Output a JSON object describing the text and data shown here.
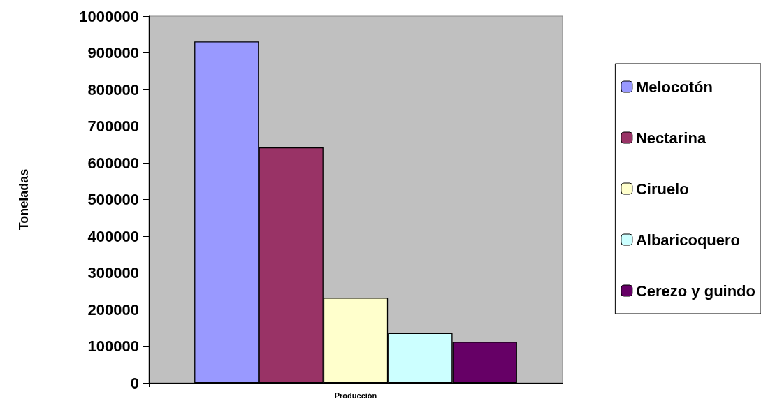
{
  "chart_data": {
    "type": "bar",
    "ylabel": "Toneladas",
    "categories": [
      "Producción"
    ],
    "series": [
      {
        "name": "Melocotón",
        "color": "#9999ff",
        "values": [
          931000
        ]
      },
      {
        "name": "Nectarina",
        "color": "#993366",
        "values": [
          642000
        ]
      },
      {
        "name": "Ciruelo",
        "color": "#ffffcc",
        "values": [
          232000
        ]
      },
      {
        "name": "Albaricoquero",
        "color": "#ccffff",
        "values": [
          136000
        ]
      },
      {
        "name": "Cerezo y guindo",
        "color": "#660066",
        "values": [
          112000
        ]
      }
    ],
    "ylim": [
      0,
      1000000
    ],
    "yticks": [
      0,
      100000,
      200000,
      300000,
      400000,
      500000,
      600000,
      700000,
      800000,
      900000,
      1000000
    ],
    "grid": false,
    "legend": "right"
  }
}
